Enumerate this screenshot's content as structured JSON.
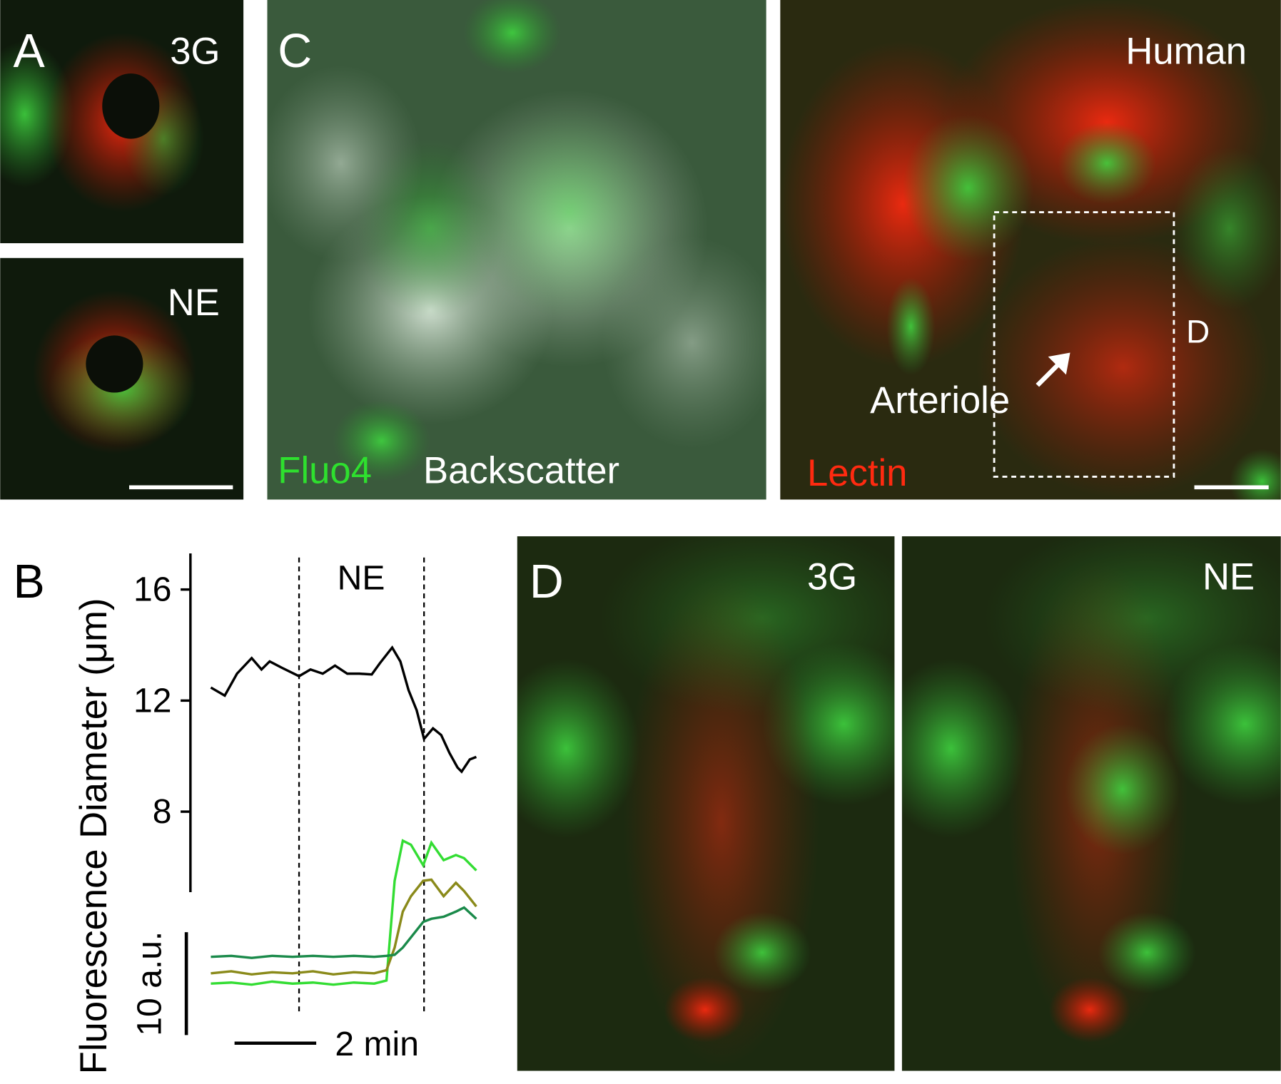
{
  "panels": {
    "a_label": "A",
    "a_top_label": "3G",
    "a_bottom_label": "NE",
    "c_label": "C",
    "c_fluo4": "Fluo4",
    "c_backscatter": "Backscatter",
    "human_label": "Human",
    "human_lectin": "Lectin",
    "human_arteriole": "Arteriole",
    "human_box_label": "D",
    "d_label": "D",
    "d_left_label": "3G",
    "d_right_label": "NE"
  },
  "chart_data": {
    "type": "line",
    "panel_label": "B",
    "annotation": "NE",
    "ylabel": "Diameter (μm)",
    "y2label": "Fluorescence",
    "xlim": [
      0,
      6.5
    ],
    "ylim": [
      5.1,
      17.3
    ],
    "yticks": [
      8,
      12,
      16
    ],
    "y2lim": [
      0,
      40
    ],
    "vlines": [
      2.16,
      5.22
    ],
    "x_scale_bar": {
      "value": 2,
      "label": "2 min"
    },
    "y_scale_bar": {
      "value": 10,
      "label": "10 a.u."
    },
    "series": [
      {
        "color": "#000000",
        "axis": "y",
        "x": [
          0,
          0.34,
          0.64,
          1.0,
          1.24,
          1.44,
          1.74,
          2.16,
          2.44,
          2.74,
          3.04,
          3.34,
          3.64,
          3.94,
          4.14,
          4.44,
          4.64,
          4.84,
          5.04,
          5.22,
          5.44,
          5.64,
          5.84,
          6.04,
          6.14,
          6.34,
          6.5
        ],
        "values": [
          12.47,
          12.18,
          12.97,
          13.53,
          13.12,
          13.41,
          13.18,
          12.88,
          13.12,
          12.97,
          13.26,
          12.97,
          12.97,
          12.94,
          13.35,
          13.91,
          13.41,
          12.38,
          11.65,
          10.62,
          11.0,
          10.76,
          10.12,
          9.59,
          9.44,
          9.88,
          9.97
        ]
      },
      {
        "color": "#33dd33",
        "axis": "y2",
        "x": [
          0,
          0.5,
          1,
          1.5,
          2,
          2.5,
          3,
          3.5,
          4,
          4.3,
          4.5,
          4.7,
          4.9,
          5.2,
          5.4,
          5.7,
          6.0,
          6.2,
          6.5
        ],
        "values": [
          5,
          5.1,
          4.9,
          5.2,
          5,
          5.1,
          4.9,
          5.1,
          5,
          5.3,
          15,
          18.9,
          18.5,
          16.5,
          18.7,
          17,
          17.5,
          17.2,
          16
        ]
      },
      {
        "color": "#8a8a1a",
        "axis": "y2",
        "x": [
          0,
          0.5,
          1,
          1.5,
          2,
          2.5,
          3,
          3.5,
          4,
          4.3,
          4.5,
          4.7,
          4.9,
          5.2,
          5.4,
          5.7,
          6.0,
          6.2,
          6.5
        ],
        "values": [
          6,
          6.2,
          5.9,
          6.1,
          6,
          6.2,
          5.9,
          6.1,
          6,
          6.3,
          8.5,
          12,
          13.5,
          15,
          15.1,
          13.5,
          14.8,
          14,
          12.5
        ]
      },
      {
        "color": "#1a8a4a",
        "axis": "y2",
        "x": [
          0,
          0.5,
          1,
          1.5,
          2,
          2.5,
          3,
          3.5,
          4,
          4.3,
          4.5,
          4.7,
          4.9,
          5.2,
          5.4,
          5.7,
          6.0,
          6.2,
          6.5
        ],
        "values": [
          7.6,
          7.7,
          7.5,
          7.7,
          7.6,
          7.7,
          7.6,
          7.7,
          7.6,
          7.7,
          7.8,
          8.5,
          9.5,
          11,
          11.3,
          11.5,
          12,
          12.4,
          11.3
        ]
      }
    ]
  }
}
